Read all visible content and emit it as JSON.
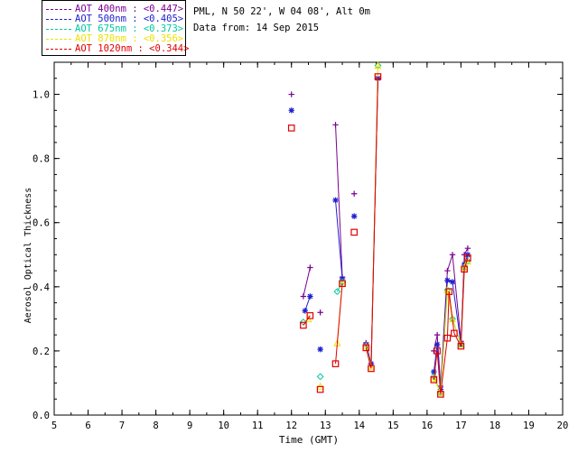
{
  "header": {
    "site_line": "PML, N 50 22', W 04 08', Alt 0m",
    "date_line": "Data from: 14 Sep 2015"
  },
  "legend": {
    "items": [
      {
        "label": "AOT  400nm : <0.447>",
        "color": "#7a0090"
      },
      {
        "label": "AOT  500nm : <0.405>",
        "color": "#2020d0"
      },
      {
        "label": "AOT  675nm : <0.373>",
        "color": "#00c8a0"
      },
      {
        "label": "AOT  870nm : <0.356>",
        "color": "#f0e000"
      },
      {
        "label": "AOT 1020nm : <0.344>",
        "color": "#e00000"
      }
    ]
  },
  "chart_data": {
    "type": "line",
    "title": "",
    "xlabel": "Time (GMT)",
    "ylabel": "Aerosol Optical Thickness",
    "xlim": [
      5,
      20
    ],
    "ylim": [
      0,
      1.1
    ],
    "xticks": [
      5,
      6,
      7,
      8,
      9,
      10,
      11,
      12,
      13,
      14,
      15,
      16,
      17,
      18,
      19,
      20
    ],
    "yticks": [
      0.0,
      0.2,
      0.4,
      0.6,
      0.8,
      1.0
    ],
    "ytick_labels": [
      "0.0",
      "0.2",
      "0.4",
      "0.6",
      "0.8",
      "1.0"
    ],
    "grid": false,
    "legend_position": "top-left, outside plot",
    "series": [
      {
        "name": "AOT 400nm",
        "color": "#7a0090",
        "marker": "plus",
        "points": [
          [
            12.0,
            1.0
          ],
          [
            12.35,
            0.37
          ],
          [
            12.55,
            0.46
          ],
          [
            12.85,
            0.32
          ],
          [
            13.3,
            0.905
          ],
          [
            13.5,
            0.43
          ],
          [
            13.85,
            0.69
          ],
          [
            14.2,
            0.225
          ],
          [
            14.35,
            0.16
          ],
          [
            14.55,
            1.05
          ],
          [
            16.2,
            0.2
          ],
          [
            16.3,
            0.25
          ],
          [
            16.4,
            0.09
          ],
          [
            16.6,
            0.45
          ],
          [
            16.75,
            0.5
          ],
          [
            17.0,
            0.23
          ],
          [
            17.1,
            0.5
          ],
          [
            17.2,
            0.52
          ]
        ]
      },
      {
        "name": "AOT 500nm",
        "color": "#2020d0",
        "marker": "asterisk",
        "points": [
          [
            12.0,
            0.95
          ],
          [
            12.4,
            0.325
          ],
          [
            12.55,
            0.37
          ],
          [
            12.85,
            0.205
          ],
          [
            13.3,
            0.67
          ],
          [
            13.5,
            0.425
          ],
          [
            13.85,
            0.62
          ],
          [
            14.2,
            0.22
          ],
          [
            14.35,
            0.16
          ],
          [
            14.55,
            1.05
          ],
          [
            16.2,
            0.135
          ],
          [
            16.3,
            0.22
          ],
          [
            16.4,
            0.08
          ],
          [
            16.6,
            0.42
          ],
          [
            16.75,
            0.415
          ],
          [
            17.0,
            0.22
          ],
          [
            17.1,
            0.47
          ],
          [
            17.2,
            0.5
          ]
        ]
      },
      {
        "name": "AOT 675nm",
        "color": "#00c8a0",
        "marker": "diamond",
        "points": [
          [
            12.35,
            0.29
          ],
          [
            12.85,
            0.12
          ],
          [
            13.35,
            0.385
          ],
          [
            13.5,
            0.415
          ],
          [
            14.55,
            1.09
          ],
          [
            16.2,
            0.12
          ],
          [
            16.4,
            0.07
          ],
          [
            16.6,
            0.39
          ],
          [
            16.75,
            0.3
          ],
          [
            17.0,
            0.22
          ],
          [
            17.1,
            0.46
          ],
          [
            17.2,
            0.48
          ]
        ]
      },
      {
        "name": "AOT 870nm",
        "color": "#f0e000",
        "marker": "triangle",
        "points": [
          [
            12.5,
            0.3
          ],
          [
            12.85,
            0.09
          ],
          [
            13.35,
            0.225
          ],
          [
            13.5,
            0.41
          ],
          [
            14.2,
            0.215
          ],
          [
            14.35,
            0.15
          ],
          [
            14.55,
            1.09
          ],
          [
            16.2,
            0.115
          ],
          [
            16.4,
            0.07
          ],
          [
            16.6,
            0.39
          ],
          [
            16.75,
            0.3
          ],
          [
            17.0,
            0.22
          ],
          [
            17.1,
            0.46
          ],
          [
            17.2,
            0.48
          ]
        ]
      },
      {
        "name": "AOT 1020nm",
        "color": "#e00000",
        "marker": "square",
        "points": [
          [
            12.0,
            0.895
          ],
          [
            12.35,
            0.28
          ],
          [
            12.55,
            0.31
          ],
          [
            12.85,
            0.08
          ],
          [
            13.3,
            0.16
          ],
          [
            13.5,
            0.41
          ],
          [
            13.85,
            0.57
          ],
          [
            14.2,
            0.21
          ],
          [
            14.35,
            0.145
          ],
          [
            14.55,
            1.055
          ],
          [
            16.2,
            0.11
          ],
          [
            16.3,
            0.2
          ],
          [
            16.4,
            0.065
          ],
          [
            16.6,
            0.24
          ],
          [
            16.65,
            0.385
          ],
          [
            16.8,
            0.255
          ],
          [
            17.0,
            0.215
          ],
          [
            17.1,
            0.455
          ],
          [
            17.2,
            0.49
          ]
        ]
      }
    ],
    "line_segments_hours": [
      [
        12.3,
        12.6
      ],
      [
        13.25,
        13.55
      ],
      [
        14.15,
        14.6
      ],
      [
        16.15,
        17.25
      ]
    ]
  }
}
